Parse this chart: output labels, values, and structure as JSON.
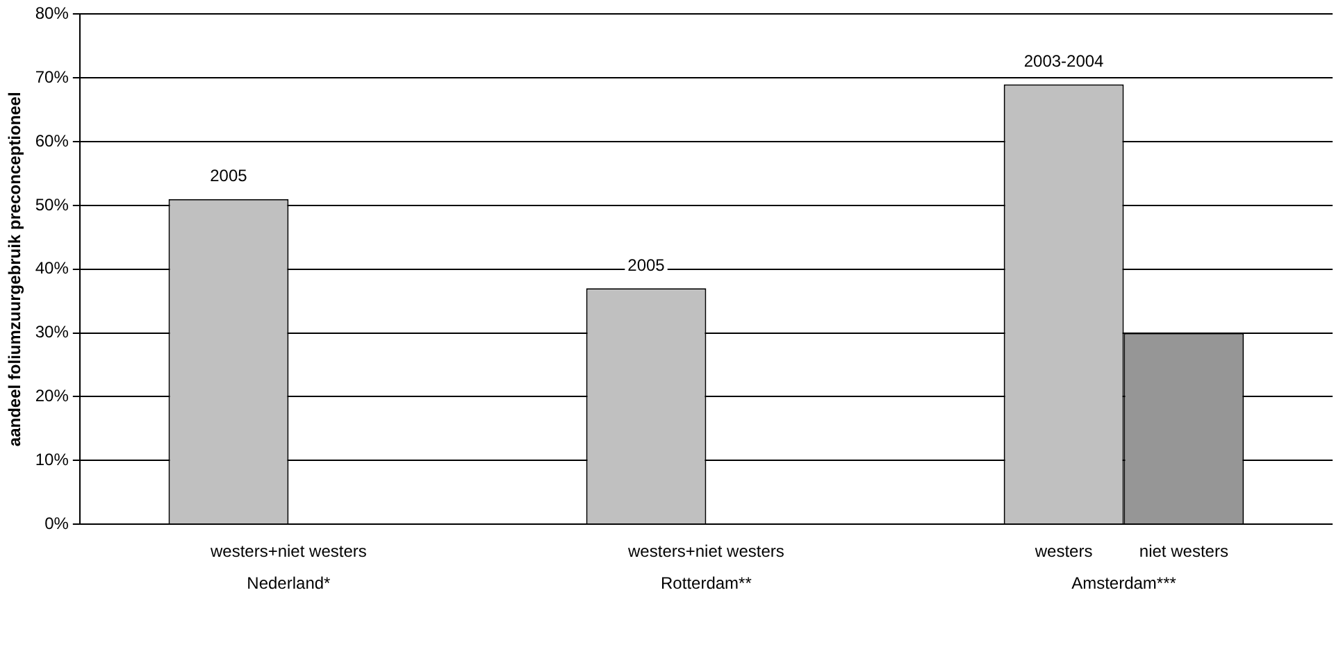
{
  "chart_data": {
    "type": "bar",
    "ylabel": "aandeel foliumzuurgebruik preconceptioneel",
    "categories": [
      "Nederland*",
      "Rotterdam**",
      "Amsterdam***"
    ],
    "series": [
      {
        "color": "#c0c0c0",
        "values": [
          51,
          37,
          69
        ]
      },
      {
        "color": "#969696",
        "values": [
          null,
          null,
          30
        ]
      }
    ],
    "ylim": [
      0,
      80
    ],
    "yticks": [
      {
        "value": 0,
        "label": "0%"
      },
      {
        "value": 10,
        "label": "10%"
      },
      {
        "value": 20,
        "label": "20%"
      },
      {
        "value": 30,
        "label": "30%"
      },
      {
        "value": 40,
        "label": "40%"
      },
      {
        "value": 50,
        "label": "50%"
      },
      {
        "value": 60,
        "label": "60%"
      },
      {
        "value": 70,
        "label": "70%"
      },
      {
        "value": 80,
        "label": "80%"
      }
    ],
    "grid": "y",
    "legend": false,
    "annotations": [
      {
        "text": "2005",
        "x": "Nederland*",
        "y": 51
      },
      {
        "text": "2005",
        "x": "Rotterdam**",
        "y": 37
      },
      {
        "text": "2003-2004",
        "x": "Amsterdam***",
        "y": 69
      },
      "westers+niet westers",
      "westers+niet westers",
      "westers",
      "niet westers"
    ]
  }
}
